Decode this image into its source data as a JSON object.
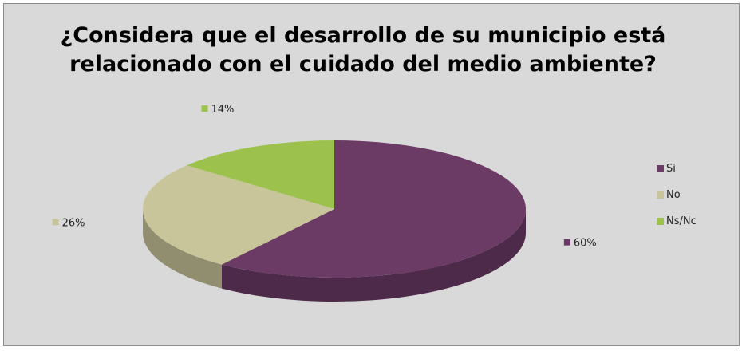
{
  "chart_data": {
    "type": "pie",
    "title": "¿Considera que el desarrollo de su municipio está relacionado con el cuidado del medio ambiente?",
    "categories": [
      "Si",
      "No",
      "Ns/Nc"
    ],
    "values": [
      60,
      26,
      14
    ],
    "data_labels": [
      "60%",
      "26%",
      "14%"
    ],
    "colors": [
      "#6b3b66",
      "#c9c59b",
      "#9cc24d"
    ],
    "legend_position": "right",
    "style": "3d"
  }
}
